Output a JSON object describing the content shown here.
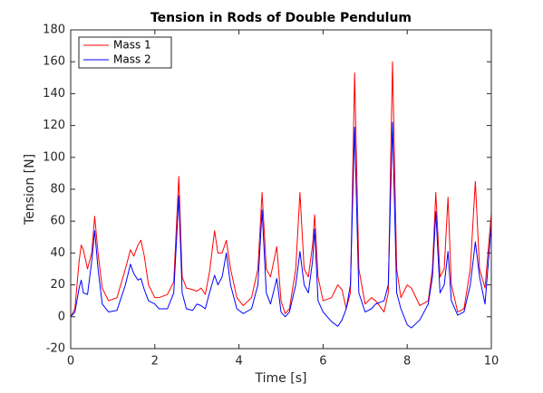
{
  "chart_data": {
    "type": "line",
    "title": "Tension in Rods of Double Pendulum",
    "x_label": "Time [s]",
    "y_label": "Tension [N]",
    "x": [
      0,
      0.1,
      0.2,
      0.25,
      0.3,
      0.4,
      0.5,
      0.57,
      0.65,
      0.75,
      0.9,
      1.1,
      1.3,
      1.42,
      1.5,
      1.6,
      1.67,
      1.75,
      1.85,
      2.0,
      2.1,
      2.3,
      2.45,
      2.57,
      2.65,
      2.75,
      2.9,
      3.0,
      3.1,
      3.2,
      3.3,
      3.42,
      3.5,
      3.6,
      3.7,
      3.8,
      3.95,
      4.1,
      4.3,
      4.45,
      4.55,
      4.65,
      4.75,
      4.9,
      5.0,
      5.1,
      5.2,
      5.35,
      5.45,
      5.55,
      5.65,
      5.75,
      5.8,
      5.88,
      6.0,
      6.2,
      6.35,
      6.45,
      6.55,
      6.65,
      6.75,
      6.85,
      7.0,
      7.15,
      7.25,
      7.45,
      7.55,
      7.65,
      7.75,
      7.85,
      8.0,
      8.1,
      8.3,
      8.5,
      8.6,
      8.68,
      8.78,
      8.88,
      8.97,
      9.05,
      9.2,
      9.35,
      9.5,
      9.62,
      9.72,
      9.85,
      10
    ],
    "series": [
      {
        "name": "Mass 1",
        "color": "#ff0000",
        "values": [
          0,
          5,
          35,
          45,
          42,
          30,
          40,
          63,
          40,
          18,
          10,
          12,
          30,
          42,
          38,
          45,
          48,
          38,
          20,
          12,
          12,
          14,
          22,
          88,
          25,
          18,
          17,
          16,
          18,
          14,
          28,
          54,
          40,
          40,
          48,
          30,
          12,
          7,
          12,
          30,
          78,
          30,
          25,
          44,
          10,
          2,
          5,
          30,
          78,
          30,
          25,
          45,
          64,
          25,
          10,
          12,
          20,
          17,
          5,
          15,
          153,
          30,
          8,
          12,
          10,
          3,
          15,
          160,
          30,
          12,
          20,
          18,
          7,
          10,
          30,
          78,
          25,
          30,
          75,
          20,
          3,
          5,
          30,
          85,
          30,
          18,
          65
        ]
      },
      {
        "name": "Mass 2",
        "color": "#0000ff",
        "values": [
          0,
          3,
          18,
          23,
          15,
          14,
          35,
          54,
          30,
          8,
          3,
          4,
          20,
          33,
          27,
          23,
          24,
          17,
          10,
          8,
          5,
          5,
          15,
          76,
          15,
          5,
          4,
          8,
          7,
          5,
          15,
          26,
          20,
          25,
          40,
          20,
          5,
          2,
          5,
          20,
          67,
          15,
          8,
          24,
          3,
          0,
          3,
          20,
          41,
          20,
          15,
          35,
          55,
          10,
          3,
          -3,
          -6,
          -2,
          5,
          20,
          119,
          15,
          3,
          5,
          8,
          10,
          20,
          122,
          15,
          5,
          -5,
          -7,
          -2,
          8,
          25,
          66,
          15,
          20,
          41,
          10,
          1,
          3,
          20,
          47,
          25,
          8,
          58
        ]
      }
    ],
    "xlim": [
      0,
      10
    ],
    "xticks": [
      0,
      2,
      4,
      6,
      8,
      10
    ],
    "ylim": [
      -20,
      180
    ],
    "yticks": [
      -20,
      0,
      20,
      40,
      60,
      80,
      100,
      120,
      140,
      160,
      180
    ],
    "legend": "upper left",
    "grid": false
  }
}
